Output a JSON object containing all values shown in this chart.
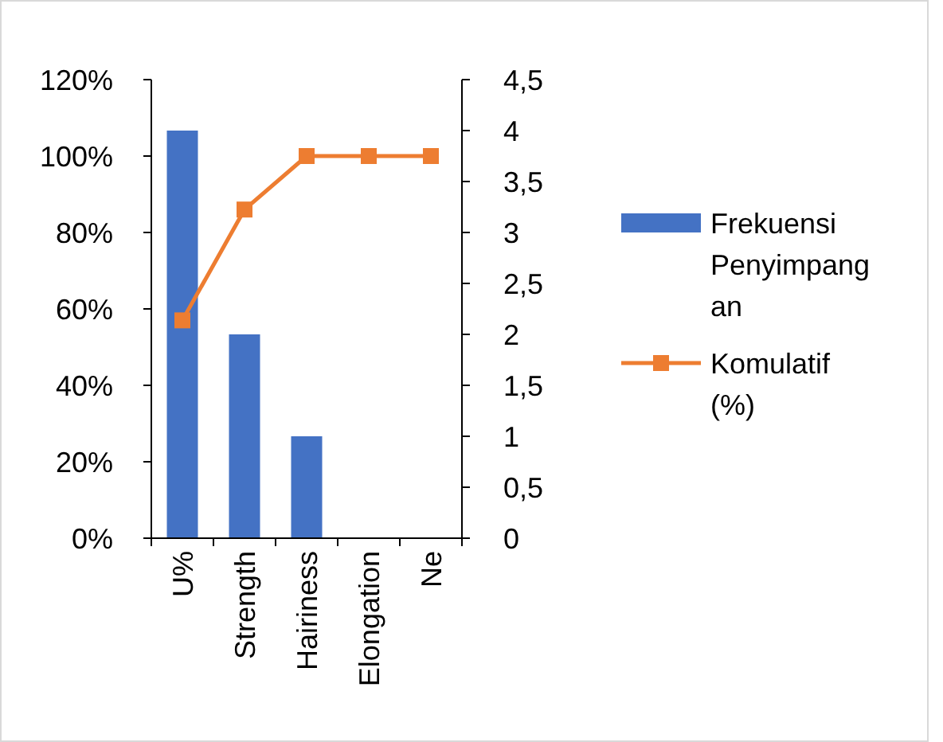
{
  "chart_data": {
    "type": "bar",
    "categories": [
      "U%",
      "Strength",
      "Hairiness",
      "Elongation",
      "Ne"
    ],
    "series": [
      {
        "name": "Frekuensi Penyimpangan",
        "axis": "y2",
        "color": "#4472c4",
        "values": [
          4,
          2,
          1,
          0,
          0
        ]
      },
      {
        "name": "Komulatif (%)",
        "type": "line",
        "axis": "y",
        "color": "#ed7d31",
        "marker": "square",
        "values": [
          57,
          86,
          100,
          100,
          100
        ]
      }
    ],
    "ylim": [
      0,
      120
    ],
    "yticks": [
      {
        "value": 0,
        "label": "0%"
      },
      {
        "value": 20,
        "label": "20%"
      },
      {
        "value": 40,
        "label": "40%"
      },
      {
        "value": 60,
        "label": "60%"
      },
      {
        "value": 80,
        "label": "80%"
      },
      {
        "value": 100,
        "label": "100%"
      },
      {
        "value": 120,
        "label": "120%"
      }
    ],
    "y2lim": [
      0,
      4.5
    ],
    "y2ticks": [
      0,
      {
        "value": 0.5,
        "label": "0,5"
      },
      1,
      {
        "value": 1.5,
        "label": "1,5"
      },
      2,
      {
        "value": 2.5,
        "label": "2,5"
      },
      3,
      {
        "value": 3.5,
        "label": "3,5"
      },
      4,
      {
        "value": 4.5,
        "label": "4,5"
      }
    ],
    "grid": false,
    "legend": "right"
  }
}
